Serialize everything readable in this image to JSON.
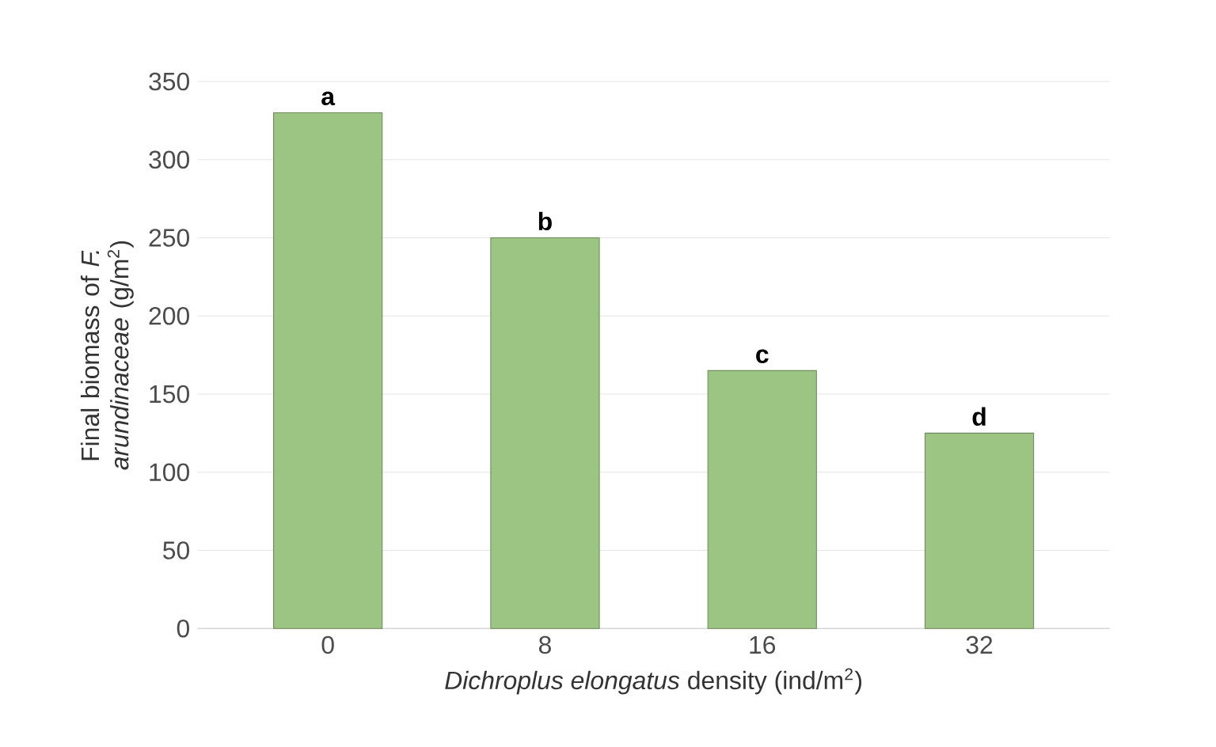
{
  "chart_data": {
    "type": "bar",
    "xlabel": "*Dichroplus elongatus* density (ind/m$^{2}$)",
    "ylabel": "Final biomass of *F. arundinaceae* (g/m$^{2}$)",
    "categories": [
      "0",
      "8",
      "16",
      "32"
    ],
    "values": [
      330,
      250,
      165,
      125
    ],
    "color": "#9cc584",
    "ylim": [
      0,
      350
    ],
    "yticks": [
      0,
      50,
      100,
      150,
      200,
      250,
      300,
      350
    ],
    "grid": "y",
    "annotations": [
      {
        "text": "a",
        "x": "0",
        "y": 330
      },
      {
        "text": "b",
        "x": "8",
        "y": 250
      },
      {
        "text": "c",
        "x": "16",
        "y": 165
      },
      {
        "text": "d",
        "x": "32",
        "y": 125
      }
    ]
  }
}
